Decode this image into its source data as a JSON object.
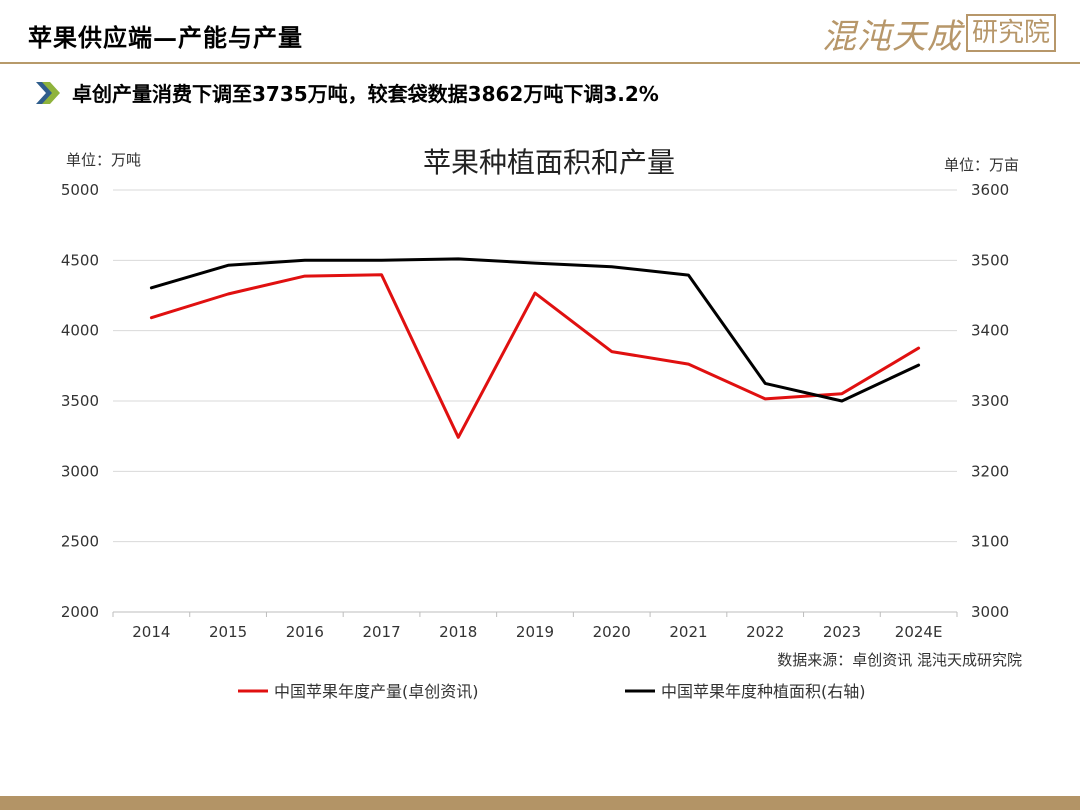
{
  "header": {
    "title": "苹果供应端—产能与产量",
    "logo_main": "混沌天成",
    "logo_box": "研究院"
  },
  "subtitle": {
    "icon": "double-chevron-right-icon",
    "text": "卓创产量消费下调至3735万吨，较套袋数据3862万吨下调3.2%"
  },
  "colors": {
    "accent_gold": "#b79a6a",
    "series_production": "#e01010",
    "series_area": "#000000"
  },
  "chart_data": {
    "type": "line",
    "title": "苹果种植面积和产量",
    "left_unit": "单位：万吨",
    "right_unit": "单位：万亩",
    "categories": [
      "2014",
      "2015",
      "2016",
      "2017",
      "2018",
      "2019",
      "2020",
      "2021",
      "2022",
      "2023",
      "2024E"
    ],
    "ylim_left": [
      2000,
      5000
    ],
    "yticks_left": [
      2000,
      2500,
      3000,
      3500,
      4000,
      4500,
      5000
    ],
    "ylim_right": [
      3000,
      3600
    ],
    "yticks_right": [
      3000,
      3100,
      3200,
      3300,
      3400,
      3500,
      3600
    ],
    "grid": true,
    "legend_position": "bottom",
    "source": "数据来源：卓创资讯  混沌天成研究院",
    "series": [
      {
        "name": "中国苹果年度产量(卓创资讯)",
        "axis": "left",
        "color": "#e01010",
        "values": [
          4092,
          4261,
          4388,
          4398,
          3242,
          4267,
          3851,
          3762,
          3515,
          3552,
          3876
        ]
      },
      {
        "name": "中国苹果年度种植面积(右轴)",
        "axis": "right",
        "color": "#000000",
        "values": [
          3461,
          3493,
          3500,
          3500,
          3502,
          3496,
          3491,
          3479,
          3325,
          3300,
          3351
        ]
      }
    ]
  }
}
